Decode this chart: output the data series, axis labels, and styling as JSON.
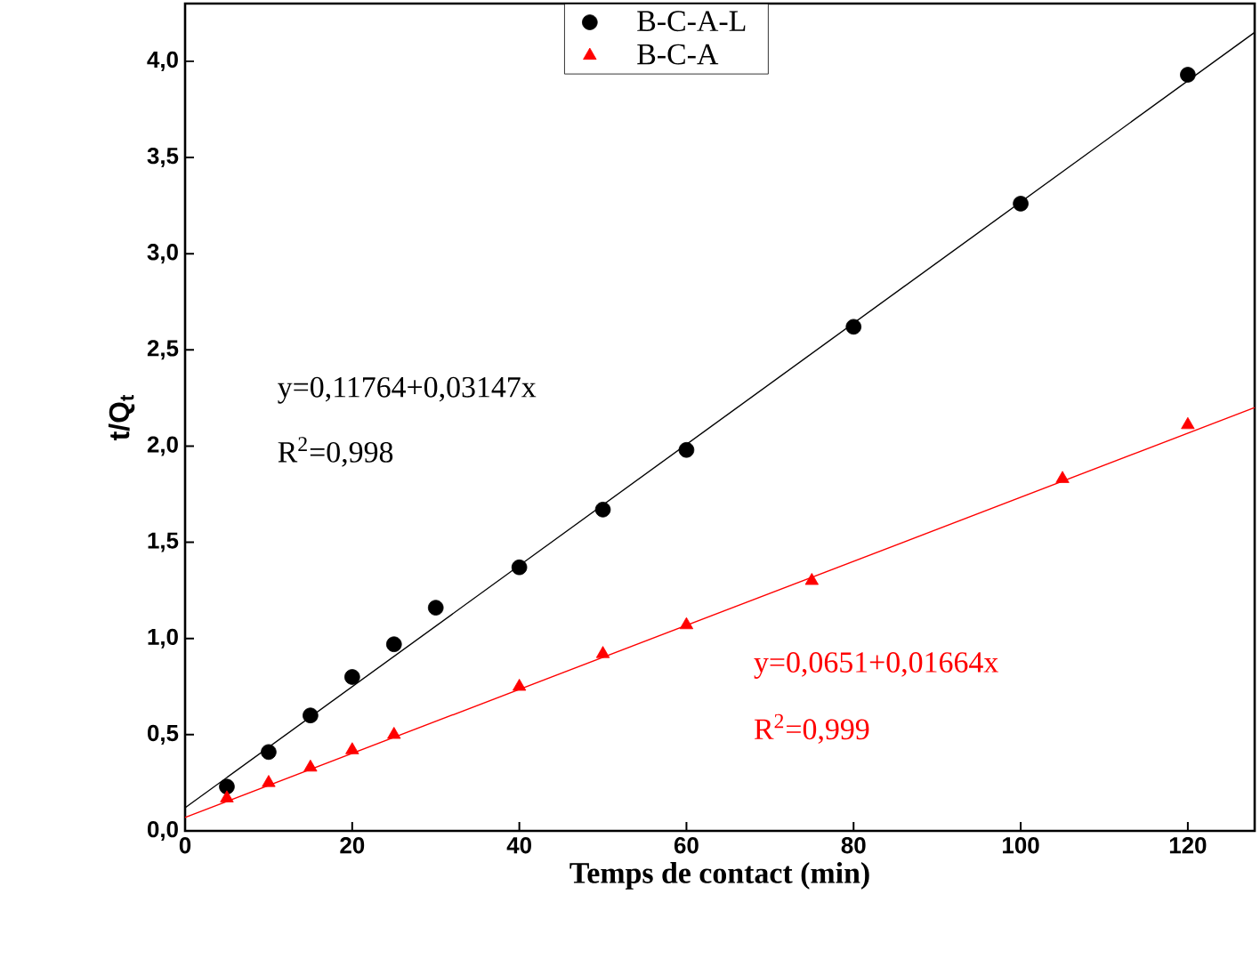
{
  "chart_data": {
    "type": "scatter",
    "xlabel": "Temps de contact (min)",
    "ylabel": "t/Q$_{t}$",
    "xlim": [
      0,
      128
    ],
    "ylim": [
      0,
      4.3
    ],
    "xticks": [
      0,
      20,
      40,
      60,
      80,
      100,
      120
    ],
    "yticks": [
      {
        "value": 0,
        "label": "0,0"
      },
      {
        "value": 0.5,
        "label": "0,5"
      },
      {
        "value": 1,
        "label": "1,0"
      },
      {
        "value": 1.5,
        "label": "1,5"
      },
      {
        "value": 2,
        "label": "2,0"
      },
      {
        "value": 2.5,
        "label": "2,5"
      },
      {
        "value": 3,
        "label": "3,0"
      },
      {
        "value": 3.5,
        "label": "3,5"
      },
      {
        "value": 4,
        "label": "4,0"
      }
    ],
    "legend": "top",
    "grid": false,
    "series": [
      {
        "name": "B-C-A-L",
        "color": "#000000",
        "marker": "circle",
        "x": [
          5,
          10,
          15,
          20,
          25,
          30,
          40,
          50,
          60,
          80,
          100,
          120
        ],
        "values": [
          0.23,
          0.41,
          0.6,
          0.8,
          0.97,
          1.16,
          1.37,
          1.67,
          1.98,
          2.62,
          3.26,
          3.93
        ]
      },
      {
        "name": "B-C-A",
        "color": "#ff0000",
        "marker": "triangle",
        "x": [
          5,
          10,
          15,
          20,
          25,
          40,
          50,
          60,
          75,
          105,
          120
        ],
        "values": [
          0.17,
          0.25,
          0.33,
          0.42,
          0.5,
          0.75,
          0.92,
          1.07,
          1.3,
          1.83,
          2.11
        ]
      },
      {
        "type": "line",
        "color": "#000000",
        "x": [
          0,
          128
        ],
        "values": [
          0.12,
          4.15
        ]
      },
      {
        "type": "line",
        "color": "#ff0000",
        "x": [
          0,
          128
        ],
        "values": [
          0.07,
          2.2
        ]
      }
    ],
    "annotations": [
      "y=0,11764+0,03147x",
      "R$^{2}$=0,998",
      "y=0,0651+0,01664x",
      "R$^{2}$=0,999"
    ]
  }
}
